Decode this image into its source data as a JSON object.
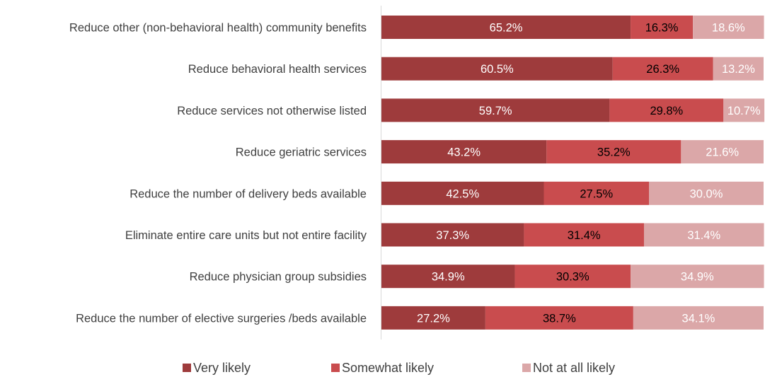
{
  "chart_data": {
    "type": "bar",
    "orientation": "horizontal",
    "stacked": true,
    "percent": true,
    "categories": [
      "Reduce other (non-behavioral health) community benefits",
      "Reduce behavioral health services",
      "Reduce services not otherwise listed",
      "Reduce geriatric services",
      "Reduce the number of delivery beds available",
      "Eliminate entire care units but not entire facility",
      "Reduce physician group subsidies",
      "Reduce the number of elective surgeries /beds available"
    ],
    "series": [
      {
        "name": "Very likely",
        "color": "#9e3b3c",
        "label_color": "#ffffff",
        "values": [
          65.2,
          60.5,
          59.7,
          43.2,
          42.5,
          37.3,
          34.9,
          27.2
        ],
        "labels": [
          "65.2%",
          "60.5%",
          "59.7%",
          "43.2%",
          "42.5%",
          "37.3%",
          "34.9%",
          "27.2%"
        ]
      },
      {
        "name": "Somewhat likely",
        "color": "#c94c4e",
        "label_color": "#000000",
        "values": [
          16.3,
          26.3,
          29.8,
          35.2,
          27.5,
          31.4,
          30.3,
          38.7
        ],
        "labels": [
          "16.3%",
          "26.3%",
          "29.8%",
          "35.2%",
          "27.5%",
          "31.4%",
          "30.3%",
          "38.7%"
        ]
      },
      {
        "name": "Not at all likely",
        "color": "#dba7a8",
        "label_color": "#ffffff",
        "values": [
          18.6,
          13.2,
          10.7,
          21.6,
          30.0,
          31.4,
          34.9,
          34.1
        ],
        "labels": [
          "18.6%",
          "13.2%",
          "10.7%",
          "21.6%",
          "30.0%",
          "31.4%",
          "34.9%",
          "34.1%"
        ]
      }
    ],
    "xlim": [
      0,
      100
    ],
    "grid": false,
    "legend_position": "bottom"
  }
}
